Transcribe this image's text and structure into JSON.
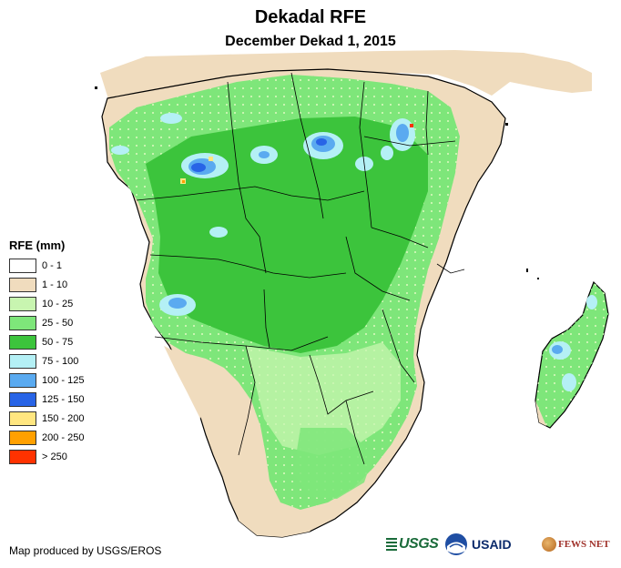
{
  "header": {
    "title": "Dekadal RFE",
    "subtitle": "December Dekad 1, 2015"
  },
  "legend": {
    "title": "RFE (mm)",
    "items": [
      {
        "label": "0 - 1",
        "color": "#ffffff"
      },
      {
        "label": "1 - 10",
        "color": "#f0dcbe"
      },
      {
        "label": "10 - 25",
        "color": "#c8f5b0"
      },
      {
        "label": "25 - 50",
        "color": "#7ee67a"
      },
      {
        "label": "50 - 75",
        "color": "#3cc43c"
      },
      {
        "label": "75 - 100",
        "color": "#b4f0f5"
      },
      {
        "label": "100 - 125",
        "color": "#5aaaf0"
      },
      {
        "label": "125 - 150",
        "color": "#2864e6"
      },
      {
        "label": "150 - 200",
        "color": "#ffe680"
      },
      {
        "label": "200 - 250",
        "color": "#ffa000"
      },
      {
        "label": "> 250",
        "color": "#ff3200"
      }
    ]
  },
  "footer": {
    "credit": "Map produced by USGS/EROS",
    "logos": {
      "usgs": "USGS",
      "usaid": "USAID",
      "fews_net": "FEWS NET"
    }
  }
}
